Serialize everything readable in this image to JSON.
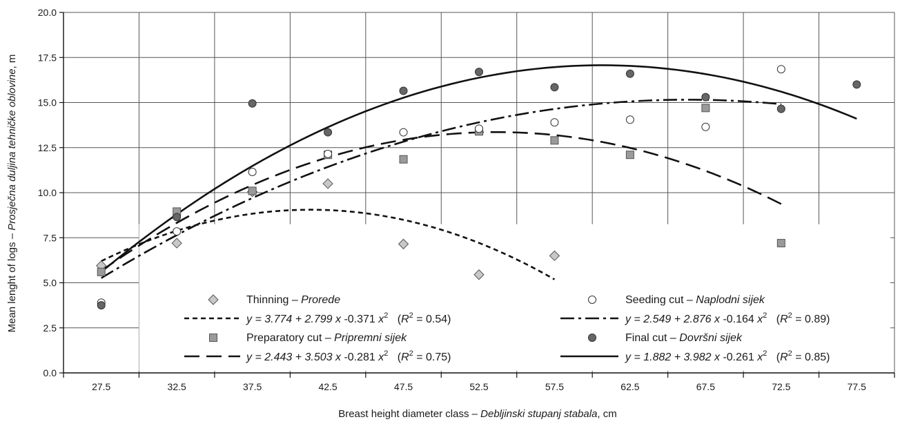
{
  "chart_data": {
    "type": "scatter",
    "xlabel_main": "Breast height diameter class – ",
    "xlabel_italic": "Debljinski stupanj stabala",
    "xlabel_unit": ", cm",
    "ylabel_main": "Mean lenght of logs – ",
    "ylabel_italic": "Prosječna duljina tehničke oblovine",
    "ylabel_unit": ", m",
    "ylim": [
      0,
      20
    ],
    "yticks": [
      "0.0",
      "2.5",
      "5.0",
      "7.5",
      "10.0",
      "12.5",
      "15.0",
      "17.5",
      "20.0"
    ],
    "categories": [
      "27.5",
      "32.5",
      "37.5",
      "42.5",
      "47.5",
      "52.5",
      "57.5",
      "62.5",
      "67.5",
      "72.5",
      "77.5"
    ],
    "grid": true,
    "series": [
      {
        "key": "thinning",
        "marker": "diamond",
        "name_main": "Thinning – ",
        "name_italic": "Prorede",
        "eq_prefix": "y = 3.774 + 2.799 ",
        "eq_mid": " -0.371 ",
        "eq_r2": "0.54",
        "trend": {
          "a": 3.774,
          "b": 2.799,
          "c": -0.371,
          "x_from": 1,
          "x_to": 7
        },
        "dash": "7,5",
        "points": [
          [
            1,
            5.95
          ],
          [
            2,
            7.2
          ],
          [
            3,
            10.05
          ],
          [
            4,
            10.5
          ],
          [
            5,
            7.15
          ],
          [
            6,
            5.45
          ],
          [
            7,
            6.5
          ]
        ]
      },
      {
        "key": "preparatory",
        "marker": "square",
        "name_main": "Preparatory cut – ",
        "name_italic": "Pripremni sijek",
        "eq_prefix": "y = 2.443 + 3.503 ",
        "eq_mid": " -0.281 ",
        "eq_r2": "0.75",
        "trend": {
          "a": 2.443,
          "b": 3.503,
          "c": -0.281,
          "x_from": 1,
          "x_to": 10
        },
        "dash": "22,10",
        "points": [
          [
            1,
            5.6
          ],
          [
            2,
            8.95
          ],
          [
            3,
            10.1
          ],
          [
            4,
            12.1
          ],
          [
            5,
            11.85
          ],
          [
            6,
            13.4
          ],
          [
            7,
            12.9
          ],
          [
            8,
            12.1
          ],
          [
            9,
            14.7
          ],
          [
            10,
            7.2
          ]
        ]
      },
      {
        "key": "seeding",
        "marker": "circle-open",
        "name_main": "Seeding cut – ",
        "name_italic": "Naplodni sijek",
        "eq_prefix": "y = 2.549 + 2.876 ",
        "eq_mid": " -0.164 ",
        "eq_r2": "0.89",
        "trend": {
          "a": 2.549,
          "b": 2.876,
          "c": -0.164,
          "x_from": 1,
          "x_to": 10
        },
        "dash": "20,6,4,6",
        "points": [
          [
            1,
            3.9
          ],
          [
            2,
            7.85
          ],
          [
            3,
            11.15
          ],
          [
            4,
            12.15
          ],
          [
            5,
            13.35
          ],
          [
            6,
            13.55
          ],
          [
            7,
            13.9
          ],
          [
            8,
            14.05
          ],
          [
            9,
            13.65
          ],
          [
            10,
            16.85
          ]
        ]
      },
      {
        "key": "final",
        "marker": "circle-filled",
        "name_main": "Final cut – ",
        "name_italic": "Dovršni sijek",
        "eq_prefix": "y = 1.882 + 3.982 ",
        "eq_mid": " -0.261 ",
        "eq_r2": "0.85",
        "trend": {
          "a": 1.882,
          "b": 3.982,
          "c": -0.261,
          "x_from": 1,
          "x_to": 11
        },
        "dash": "",
        "points": [
          [
            1,
            3.75
          ],
          [
            2,
            8.65
          ],
          [
            3,
            14.95
          ],
          [
            4,
            13.35
          ],
          [
            5,
            15.65
          ],
          [
            6,
            16.7
          ],
          [
            7,
            15.85
          ],
          [
            8,
            16.6
          ],
          [
            9,
            15.3
          ],
          [
            10,
            14.65
          ],
          [
            11,
            16.0
          ]
        ]
      }
    ],
    "eq_x": "x",
    "eq_x2": "x",
    "eq_sup": "2",
    "eq_r_open": "(",
    "eq_R": "R",
    "eq_r_mid": " = ",
    "eq_r_close": ")"
  }
}
